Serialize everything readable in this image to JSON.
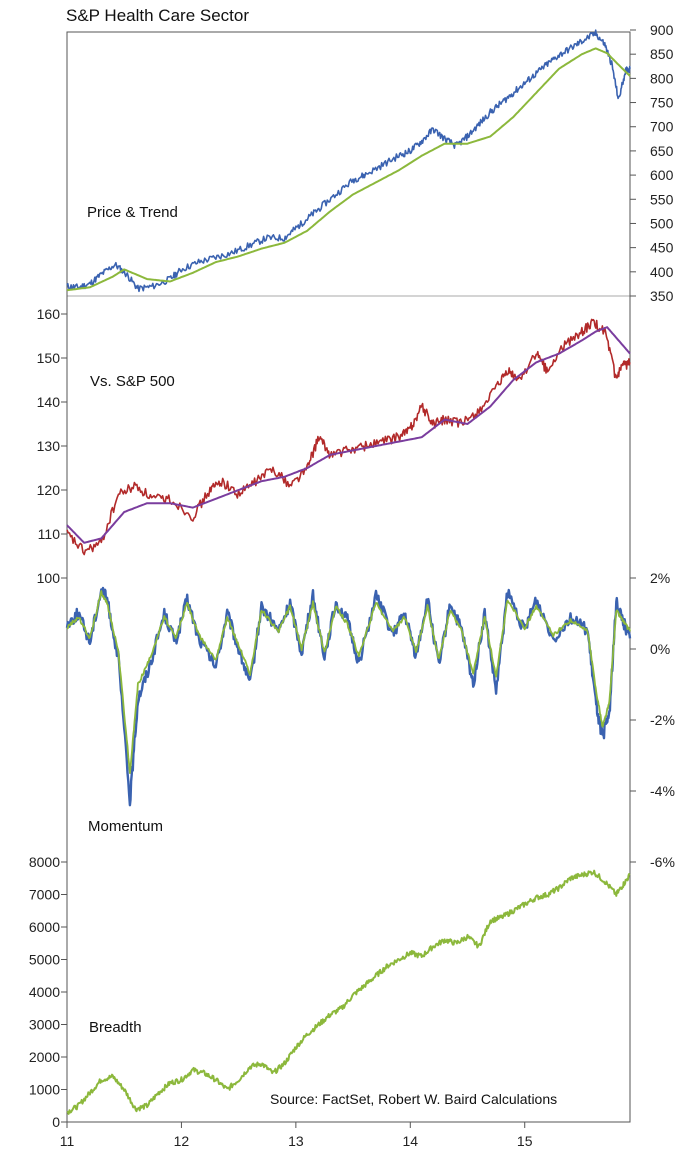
{
  "title": "S&P Health Care Sector",
  "source": "Source: FactSet, Robert W. Baird Calculations",
  "colors": {
    "price": "#3a62b0",
    "trend": "#8cb83c",
    "relative": "#b22a2a",
    "relative_trend": "#7a3d9e",
    "momentum_raw": "#3a62b0",
    "momentum_smooth": "#8cb83c",
    "breadth": "#8cb83c"
  },
  "chart_data": [
    {
      "type": "line",
      "label": "Price & Trend",
      "ylim": [
        350,
        900
      ],
      "y_ticks": [
        "350",
        "400",
        "450",
        "500",
        "550",
        "600",
        "650",
        "700",
        "750",
        "800",
        "850",
        "900"
      ],
      "x_ticks": [
        "11",
        "12",
        "13",
        "14",
        "15"
      ],
      "x_range": [
        2011.0,
        2015.92
      ],
      "series": [
        {
          "role": "price",
          "x": [
            2011.0,
            2011.1,
            2011.2,
            2011.3,
            2011.42,
            2011.52,
            2011.62,
            2011.75,
            2011.9,
            2012.0,
            2012.15,
            2012.3,
            2012.45,
            2012.6,
            2012.75,
            2012.9,
            2013.0,
            2013.1,
            2013.2,
            2013.35,
            2013.5,
            2013.6,
            2013.75,
            2013.9,
            2014.0,
            2014.1,
            2014.2,
            2014.3,
            2014.4,
            2014.5,
            2014.6,
            2014.7,
            2014.8,
            2014.9,
            2015.0,
            2015.1,
            2015.2,
            2015.3,
            2015.42,
            2015.52,
            2015.62,
            2015.7,
            2015.76,
            2015.82,
            2015.88,
            2015.92
          ],
          "values": [
            370,
            368,
            375,
            395,
            415,
            395,
            365,
            370,
            385,
            405,
            420,
            430,
            440,
            455,
            470,
            470,
            490,
            510,
            530,
            560,
            590,
            600,
            620,
            640,
            650,
            670,
            695,
            675,
            660,
            680,
            705,
            730,
            750,
            770,
            790,
            810,
            830,
            848,
            865,
            880,
            893,
            870,
            830,
            755,
            815,
            820
          ]
        },
        {
          "role": "trend",
          "x": [
            2011.0,
            2011.2,
            2011.4,
            2011.5,
            2011.7,
            2011.9,
            2012.1,
            2012.3,
            2012.5,
            2012.7,
            2012.9,
            2013.1,
            2013.3,
            2013.5,
            2013.7,
            2013.9,
            2014.1,
            2014.3,
            2014.5,
            2014.7,
            2014.9,
            2015.1,
            2015.3,
            2015.5,
            2015.62,
            2015.72,
            2015.82,
            2015.92
          ],
          "values": [
            362,
            368,
            390,
            405,
            385,
            380,
            398,
            420,
            432,
            448,
            460,
            485,
            525,
            560,
            585,
            610,
            640,
            665,
            665,
            680,
            720,
            770,
            820,
            850,
            862,
            852,
            828,
            805
          ]
        }
      ]
    },
    {
      "type": "line",
      "label": "Vs. S&P 500",
      "ylim": [
        100,
        160
      ],
      "y_ticks": [
        "100",
        "110",
        "120",
        "130",
        "140",
        "150",
        "160"
      ],
      "x_range": [
        2011.0,
        2015.92
      ],
      "series": [
        {
          "role": "relative",
          "x": [
            2011.0,
            2011.15,
            2011.3,
            2011.45,
            2011.6,
            2011.75,
            2011.9,
            2012.1,
            2012.25,
            2012.35,
            2012.5,
            2012.65,
            2012.8,
            2012.95,
            2013.1,
            2013.2,
            2013.3,
            2013.45,
            2013.6,
            2013.75,
            2013.9,
            2014.0,
            2014.1,
            2014.2,
            2014.3,
            2014.45,
            2014.6,
            2014.75,
            2014.85,
            2014.95,
            2015.1,
            2015.2,
            2015.35,
            2015.5,
            2015.6,
            2015.7,
            2015.8,
            2015.85,
            2015.92
          ],
          "values": [
            110,
            106,
            108,
            119,
            121,
            118,
            118,
            114,
            120,
            122,
            119,
            122,
            125,
            121,
            125,
            132,
            128,
            129,
            130,
            131,
            132,
            134,
            139,
            135,
            136,
            135,
            138,
            143,
            147,
            145,
            151,
            147,
            153,
            156,
            158,
            156,
            145,
            148,
            149
          ]
        },
        {
          "role": "relative_trend",
          "x": [
            2011.0,
            2011.15,
            2011.3,
            2011.5,
            2011.7,
            2011.9,
            2012.1,
            2012.3,
            2012.5,
            2012.7,
            2012.9,
            2013.1,
            2013.3,
            2013.5,
            2013.7,
            2013.9,
            2014.1,
            2014.3,
            2014.5,
            2014.7,
            2014.9,
            2015.1,
            2015.3,
            2015.5,
            2015.62,
            2015.72,
            2015.82,
            2015.92
          ],
          "values": [
            112,
            108,
            109,
            115,
            117,
            117,
            116,
            118,
            120,
            122,
            123,
            125,
            128,
            129,
            130,
            131,
            132,
            136,
            135,
            139,
            145,
            149,
            151,
            154,
            156,
            157,
            154,
            151
          ]
        }
      ]
    },
    {
      "type": "line",
      "label": "Momentum",
      "ylim": [
        -6,
        2
      ],
      "y_ticks": [
        "2%",
        "0%",
        "-2%",
        "-4%",
        "-6%"
      ],
      "x_range": [
        2011.0,
        2015.92
      ],
      "series": [
        {
          "role": "momentum_raw",
          "x": [
            2011.0,
            2011.1,
            2011.2,
            2011.3,
            2011.35,
            2011.45,
            2011.55,
            2011.62,
            2011.72,
            2011.85,
            2011.95,
            2012.05,
            2012.15,
            2012.3,
            2012.4,
            2012.5,
            2012.6,
            2012.7,
            2012.85,
            2012.95,
            2013.05,
            2013.15,
            2013.25,
            2013.35,
            2013.45,
            2013.55,
            2013.7,
            2013.85,
            2013.95,
            2014.05,
            2014.15,
            2014.25,
            2014.35,
            2014.45,
            2014.55,
            2014.65,
            2014.75,
            2014.85,
            2015.0,
            2015.1,
            2015.25,
            2015.4,
            2015.55,
            2015.62,
            2015.68,
            2015.74,
            2015.8,
            2015.86,
            2015.92
          ],
          "values": [
            0.7,
            1.0,
            0.2,
            1.7,
            1.4,
            -0.3,
            -4.3,
            -1.4,
            -0.5,
            1.0,
            0.2,
            1.4,
            0.3,
            -0.5,
            1.0,
            0.0,
            -1.0,
            1.2,
            0.5,
            1.3,
            -0.1,
            1.5,
            -0.2,
            1.3,
            0.8,
            -0.4,
            1.5,
            0.4,
            1.0,
            -0.2,
            1.4,
            -0.5,
            1.3,
            0.5,
            -1.0,
            1.0,
            -1.2,
            1.6,
            0.5,
            1.4,
            0.3,
            0.9,
            0.5,
            -1.5,
            -2.5,
            -1.8,
            1.3,
            0.8,
            0.3
          ]
        },
        {
          "role": "momentum_smooth",
          "x": [
            2011.0,
            2011.1,
            2011.2,
            2011.3,
            2011.35,
            2011.45,
            2011.55,
            2011.62,
            2011.72,
            2011.85,
            2011.95,
            2012.05,
            2012.15,
            2012.3,
            2012.4,
            2012.5,
            2012.6,
            2012.7,
            2012.85,
            2012.95,
            2013.05,
            2013.15,
            2013.25,
            2013.35,
            2013.45,
            2013.55,
            2013.7,
            2013.85,
            2013.95,
            2014.05,
            2014.15,
            2014.25,
            2014.35,
            2014.45,
            2014.55,
            2014.65,
            2014.75,
            2014.85,
            2015.0,
            2015.1,
            2015.25,
            2015.4,
            2015.55,
            2015.62,
            2015.68,
            2015.74,
            2015.8,
            2015.86,
            2015.92
          ],
          "values": [
            0.6,
            0.9,
            0.3,
            1.6,
            1.3,
            -0.1,
            -3.5,
            -1.0,
            -0.3,
            0.9,
            0.3,
            1.3,
            0.4,
            -0.3,
            0.9,
            0.1,
            -0.7,
            1.1,
            0.5,
            1.2,
            0.0,
            1.3,
            -0.1,
            1.2,
            0.7,
            -0.2,
            1.3,
            0.5,
            0.9,
            -0.1,
            1.2,
            -0.3,
            1.1,
            0.5,
            -0.7,
            0.9,
            -0.8,
            1.4,
            0.6,
            1.2,
            0.4,
            0.8,
            0.5,
            -1.1,
            -2.2,
            -1.5,
            1.1,
            0.8,
            0.5
          ]
        }
      ]
    },
    {
      "type": "line",
      "label": "Breadth",
      "ylim": [
        0,
        8000
      ],
      "y_ticks": [
        "0",
        "1000",
        "2000",
        "3000",
        "4000",
        "5000",
        "6000",
        "7000",
        "8000"
      ],
      "x_ticks": [
        "11",
        "12",
        "13",
        "14",
        "15"
      ],
      "x_range": [
        2011.0,
        2015.92
      ],
      "series": [
        {
          "role": "breadth",
          "x": [
            2011.0,
            2011.1,
            2011.2,
            2011.3,
            2011.4,
            2011.5,
            2011.6,
            2011.7,
            2011.8,
            2011.9,
            2012.0,
            2012.1,
            2012.2,
            2012.3,
            2012.4,
            2012.5,
            2012.6,
            2012.7,
            2012.8,
            2012.9,
            2013.0,
            2013.1,
            2013.2,
            2013.3,
            2013.4,
            2013.5,
            2013.6,
            2013.7,
            2013.8,
            2013.9,
            2014.0,
            2014.1,
            2014.2,
            2014.3,
            2014.4,
            2014.5,
            2014.6,
            2014.7,
            2014.8,
            2014.9,
            2015.0,
            2015.1,
            2015.2,
            2015.3,
            2015.4,
            2015.5,
            2015.6,
            2015.7,
            2015.8,
            2015.86,
            2015.92
          ],
          "values": [
            300,
            500,
            900,
            1300,
            1400,
            1000,
            400,
            500,
            900,
            1200,
            1300,
            1600,
            1500,
            1300,
            1000,
            1300,
            1700,
            1800,
            1500,
            1800,
            2300,
            2700,
            3000,
            3300,
            3500,
            3900,
            4200,
            4500,
            4800,
            5000,
            5200,
            5100,
            5400,
            5600,
            5500,
            5700,
            5400,
            6200,
            6300,
            6500,
            6700,
            6900,
            7000,
            7200,
            7500,
            7600,
            7700,
            7400,
            7000,
            7300,
            7600
          ]
        }
      ]
    }
  ]
}
